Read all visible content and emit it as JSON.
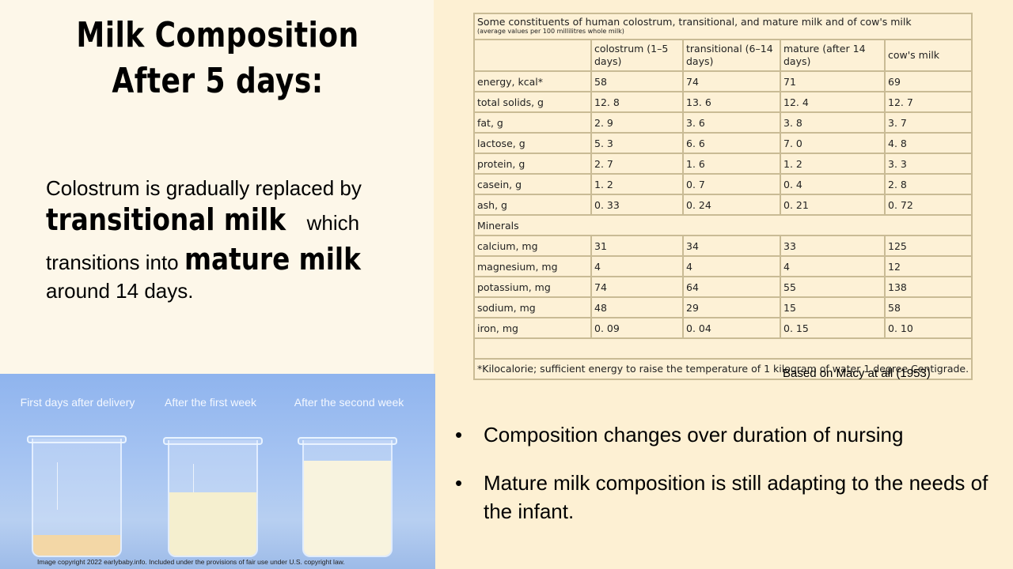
{
  "title": {
    "line1": "Milk Composition",
    "line2": "After 5 days:"
  },
  "body": {
    "part1": "Colostrum is gradually replaced by",
    "term1": "transitional milk",
    "part2": "which",
    "part3": "transitions into",
    "term2": "mature milk",
    "part4": "around 14 days."
  },
  "photo": {
    "captions": [
      "First days after delivery",
      "After the first week",
      "After the second week"
    ],
    "copyright": "Image copyright 2022 earlybaby.info. Included under the provisions of fair use under U.S. copyright law."
  },
  "table": {
    "caption": "Some constituents of human colostrum, transitional, and mature milk and of cow's milk",
    "subcaption": "(average values per 100 millilitres whole milk)",
    "columns": [
      "colostrum (1–5 days)",
      "transitional (6–14 days)",
      "mature (after 14 days)",
      "cow's milk"
    ],
    "rows": [
      {
        "label": "energy, kcal*",
        "values": [
          "58",
          "74",
          "71",
          "69"
        ]
      },
      {
        "label": "total solids, g",
        "values": [
          "12. 8",
          "13. 6",
          "12. 4",
          "12. 7"
        ]
      },
      {
        "label": "fat, g",
        "values": [
          "2. 9",
          "3. 6",
          "3. 8",
          "3. 7"
        ]
      },
      {
        "label": "lactose, g",
        "values": [
          "5. 3",
          "6. 6",
          "7. 0",
          "4. 8"
        ]
      },
      {
        "label": "protein, g",
        "values": [
          "2. 7",
          "1. 6",
          "1. 2",
          "3. 3"
        ]
      },
      {
        "label": "casein, g",
        "values": [
          "1. 2",
          "0. 7",
          "0. 4",
          "2. 8"
        ]
      },
      {
        "label": "ash, g",
        "values": [
          "0. 33",
          "0. 24",
          "0. 21",
          "0. 72"
        ]
      }
    ],
    "section": "Minerals",
    "mineral_rows": [
      {
        "label": "calcium, mg",
        "values": [
          "31",
          "34",
          "33",
          "125"
        ]
      },
      {
        "label": "magnesium, mg",
        "values": [
          "4",
          "4",
          "4",
          "12"
        ]
      },
      {
        "label": "potassium, mg",
        "values": [
          "74",
          "64",
          "55",
          "138"
        ]
      },
      {
        "label": "sodium, mg",
        "values": [
          "48",
          "29",
          "15",
          "58"
        ]
      },
      {
        "label": "iron, mg",
        "values": [
          "0. 09",
          "0. 04",
          "0. 15",
          "0. 10"
        ]
      }
    ],
    "footnote": "*Kilocalorie; sufficient energy to raise the temperature of 1 kilogram of water 1 degree Centigrade.",
    "source": "Based on Macy at all (1953)"
  },
  "bullets": [
    "Composition changes over duration of nursing",
    "Mature milk composition is still adapting to the needs of the infant."
  ],
  "colors": {
    "background": "#fdf7e9",
    "right_panel": "#fdf0d3",
    "table_border": "#c9bb95"
  }
}
